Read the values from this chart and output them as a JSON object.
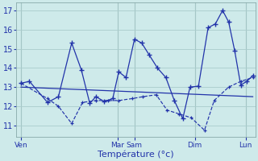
{
  "title": "Température (°c)",
  "background_color": "#ceeaea",
  "grid_color": "#aacccc",
  "line_color": "#2233aa",
  "ylim": [
    10.4,
    17.4
  ],
  "yticks": [
    11,
    12,
    13,
    14,
    15,
    16,
    17
  ],
  "xlim": [
    -0.2,
    9.7
  ],
  "day_positions": [
    0,
    4.0,
    4.7,
    7.2,
    9.3
  ],
  "day_labels": [
    "Ven",
    "Mar",
    "Sam",
    "Dim",
    "Lun"
  ],
  "series1_x": [
    0,
    0.35,
    1.1,
    1.55,
    2.1,
    2.5,
    2.85,
    3.1,
    3.45,
    3.8,
    4.05,
    4.35,
    4.7,
    5.0,
    5.3,
    5.65,
    6.0,
    6.35,
    6.7,
    7.0,
    7.35,
    7.75,
    8.05,
    8.35,
    8.6,
    8.85,
    9.1,
    9.35,
    9.6
  ],
  "series1_y": [
    13.2,
    13.3,
    12.2,
    12.5,
    15.3,
    13.9,
    12.15,
    12.5,
    12.25,
    12.4,
    13.8,
    13.5,
    15.5,
    15.3,
    14.7,
    14.0,
    13.5,
    12.3,
    11.35,
    13.0,
    13.05,
    16.1,
    16.3,
    17.0,
    16.4,
    14.9,
    13.1,
    13.3,
    13.6
  ],
  "series2_x": [
    0,
    1.1,
    1.55,
    2.1,
    2.55,
    3.1,
    3.6,
    4.05,
    4.6,
    5.05,
    5.6,
    6.05,
    6.55,
    7.05,
    7.6,
    8.0,
    8.6,
    9.1,
    9.6
  ],
  "series2_y": [
    13.2,
    12.4,
    12.0,
    11.1,
    12.2,
    12.3,
    12.3,
    12.3,
    12.4,
    12.5,
    12.6,
    11.8,
    11.6,
    11.4,
    10.75,
    12.3,
    13.0,
    13.3,
    13.5
  ],
  "series3_x": [
    0,
    9.6
  ],
  "series3_y": [
    13.0,
    12.5
  ]
}
